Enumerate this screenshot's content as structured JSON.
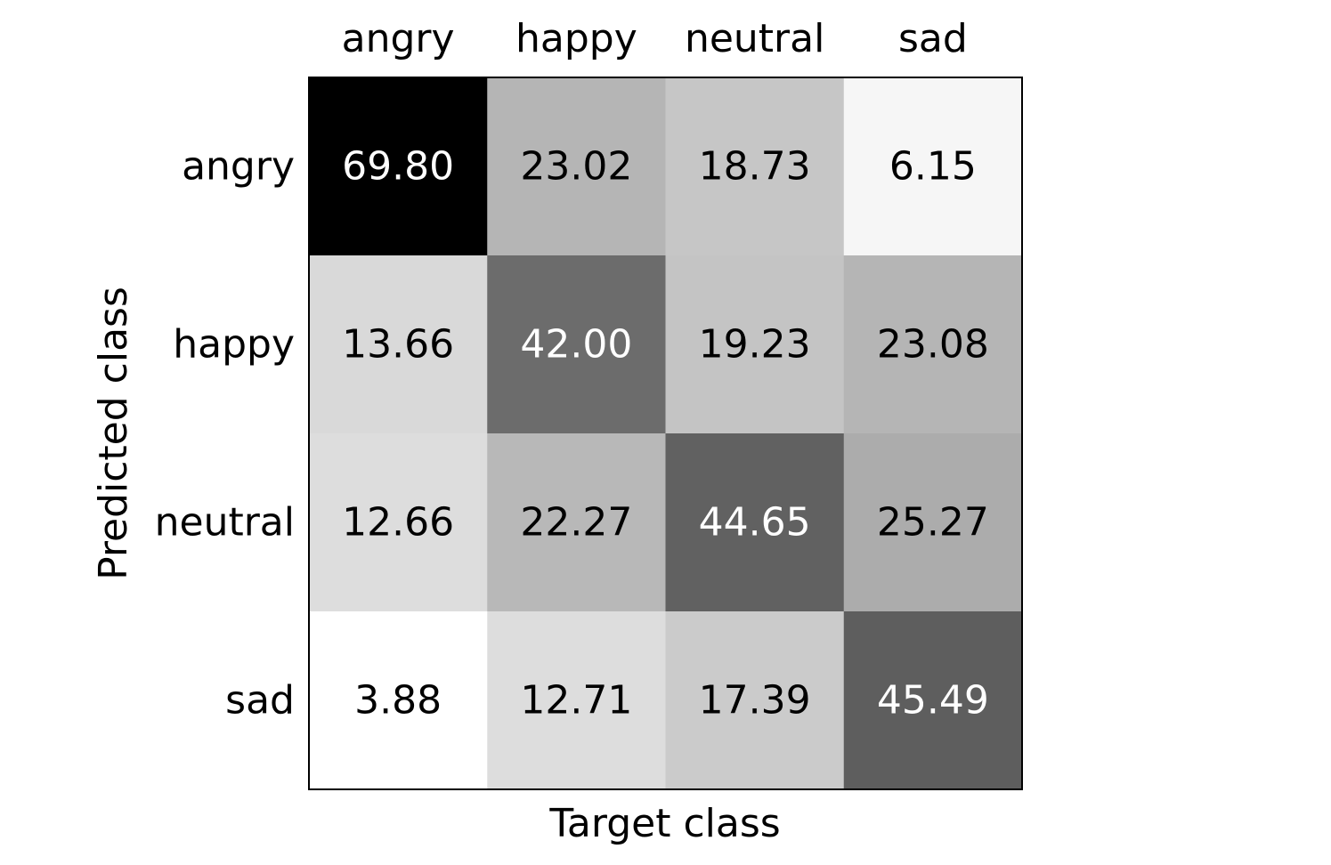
{
  "chart_data": {
    "type": "heatmap",
    "colormap": "gray_r",
    "text_colors": {
      "dark_cell": "#ffffff",
      "light_cell": "#000000"
    },
    "x_categories": [
      "angry",
      "happy",
      "neutral",
      "sad"
    ],
    "y_categories": [
      "angry",
      "happy",
      "neutral",
      "sad"
    ],
    "xlabel": "Target class",
    "ylabel": "Predicted class",
    "x_tick_position": "top",
    "grid": false,
    "legend": "none",
    "values": [
      [
        "69.80",
        "23.02",
        "18.73",
        "6.15"
      ],
      [
        "13.66",
        "42.00",
        "19.23",
        "23.08"
      ],
      [
        "12.66",
        "22.27",
        "44.65",
        "25.27"
      ],
      [
        "3.88",
        "12.71",
        "17.39",
        "45.49"
      ]
    ]
  }
}
